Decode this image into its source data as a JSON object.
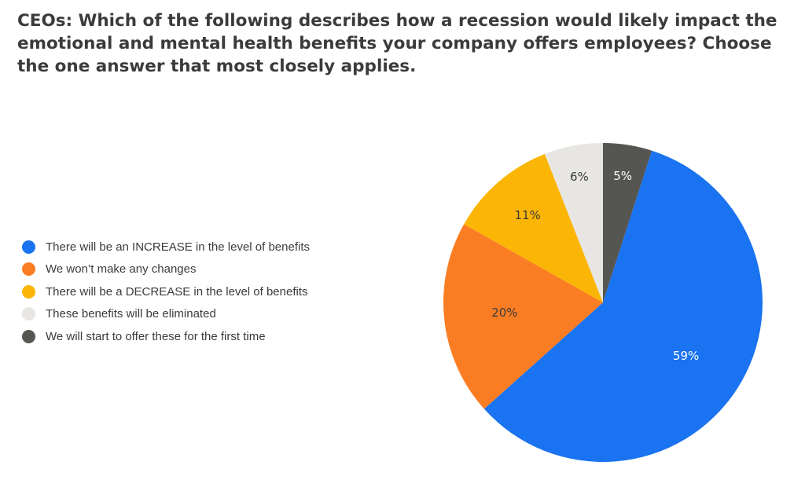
{
  "chart_data": {
    "type": "pie",
    "title": "CEOs: Which of the following describes how a recession would likely impact the emotional and mental health benefits your company offers employees? Choose the one answer that most closely applies.",
    "legend_position": "left",
    "slices": [
      {
        "label": "There will be an INCREASE in the level of benefits",
        "value": 59,
        "display": "59%",
        "color": "#1a73f0",
        "text_color": "#ffffff"
      },
      {
        "label": "We won’t make any changes",
        "value": 20,
        "display": "20%",
        "color": "#fb7d23",
        "text_color": "#3b3b3b"
      },
      {
        "label": "There will be a DECREASE in the level of benefits",
        "value": 11,
        "display": "11%",
        "color": "#fbb504",
        "text_color": "#3b3b3b"
      },
      {
        "label": "These benefits will be eliminated",
        "value": 6,
        "display": "6%",
        "color": "#e8e6e3",
        "text_color": "#3b3b3b"
      },
      {
        "label": "We will start to offer these for the first time",
        "value": 5,
        "display": "5%",
        "color": "#555552",
        "text_color": "#ffffff"
      }
    ]
  }
}
